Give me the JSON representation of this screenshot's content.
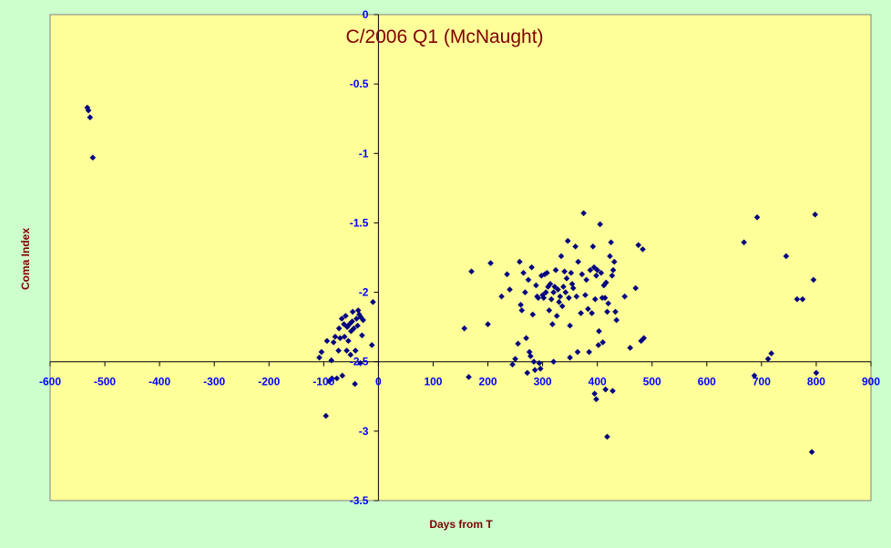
{
  "chart_data": {
    "type": "scatter",
    "title": "C/2006 Q1 (McNaught)",
    "xlabel": "Days from T",
    "ylabel": "Coma Index",
    "xlim": [
      -600,
      900
    ],
    "ylim": [
      -3.5,
      0
    ],
    "x_ticks": [
      -600,
      -500,
      -400,
      -300,
      -200,
      -100,
      0,
      100,
      200,
      300,
      400,
      500,
      600,
      700,
      800,
      900
    ],
    "y_ticks": [
      0,
      -0.5,
      -1,
      -1.5,
      -2,
      -2.5,
      -3,
      -3.5
    ],
    "x_tick_labels": [
      "-600",
      "-500",
      "-400",
      "-300",
      "-200",
      "-100",
      "0",
      "100",
      "200",
      "300",
      "400",
      "500",
      "600",
      "700",
      "800",
      "900"
    ],
    "y_tick_labels": [
      "0",
      "-0.5",
      "-1",
      "-1.5",
      "-2",
      "-2.5",
      "-3",
      "-3.5"
    ],
    "x_axis_crosses_y_at": -2.5,
    "grid": false,
    "legend": "none",
    "plot_background": "#ffff99",
    "page_background": "#ccffcc",
    "marker_color": "#000080",
    "title_color": "#800000",
    "tick_color": "#0000ff",
    "series": [
      {
        "points": [
          [
            -532,
            -0.67
          ],
          [
            -530,
            -0.69
          ],
          [
            -527,
            -0.74
          ],
          [
            -522,
            -1.03
          ],
          [
            -108,
            -2.47
          ],
          [
            -104,
            -2.43
          ],
          [
            -94,
            -2.35
          ],
          [
            -96,
            -2.89
          ],
          [
            -90,
            -2.64
          ],
          [
            -85,
            -2.62
          ],
          [
            -86,
            -2.49
          ],
          [
            -82,
            -2.36
          ],
          [
            -79,
            -2.32
          ],
          [
            -76,
            -2.62
          ],
          [
            -73,
            -2.42
          ],
          [
            -72,
            -2.26
          ],
          [
            -70,
            -2.33
          ],
          [
            -67,
            -2.19
          ],
          [
            -66,
            -2.6
          ],
          [
            -63,
            -2.23
          ],
          [
            -62,
            -2.32
          ],
          [
            -60,
            -2.17
          ],
          [
            -58,
            -2.42
          ],
          [
            -57,
            -2.25
          ],
          [
            -55,
            -2.35
          ],
          [
            -53,
            -2.23
          ],
          [
            -51,
            -2.45
          ],
          [
            -50,
            -2.28
          ],
          [
            -48,
            -2.21
          ],
          [
            -47,
            -2.14
          ],
          [
            -45,
            -2.26
          ],
          [
            -43,
            -2.66
          ],
          [
            -42,
            -2.42
          ],
          [
            -40,
            -2.19
          ],
          [
            -38,
            -2.24
          ],
          [
            -37,
            -2.13
          ],
          [
            -35,
            -2.16
          ],
          [
            -33,
            -2.51
          ],
          [
            -32,
            -2.18
          ],
          [
            -30,
            -2.31
          ],
          [
            -28,
            -2.2
          ],
          [
            -12,
            -2.38
          ],
          [
            -10,
            -2.07
          ],
          [
            157,
            -2.26
          ],
          [
            165,
            -2.61
          ],
          [
            170,
            -1.85
          ],
          [
            200,
            -2.23
          ],
          [
            205,
            -1.79
          ],
          [
            225,
            -2.03
          ],
          [
            235,
            -1.87
          ],
          [
            240,
            -1.98
          ],
          [
            245,
            -2.52
          ],
          [
            250,
            -2.48
          ],
          [
            255,
            -2.37
          ],
          [
            258,
            -1.78
          ],
          [
            260,
            -2.09
          ],
          [
            262,
            -2.13
          ],
          [
            265,
            -1.86
          ],
          [
            268,
            -2.0
          ],
          [
            270,
            -2.33
          ],
          [
            272,
            -2.58
          ],
          [
            274,
            -1.91
          ],
          [
            276,
            -2.43
          ],
          [
            278,
            -2.46
          ],
          [
            280,
            -1.82
          ],
          [
            282,
            -2.16
          ],
          [
            284,
            -2.5
          ],
          [
            286,
            -2.56
          ],
          [
            288,
            -1.95
          ],
          [
            290,
            -2.03
          ],
          [
            292,
            -2.04
          ],
          [
            294,
            -2.51
          ],
          [
            296,
            -2.55
          ],
          [
            298,
            -1.88
          ],
          [
            300,
            -2.02
          ],
          [
            302,
            -2.04
          ],
          [
            304,
            -1.87
          ],
          [
            306,
            -2.0
          ],
          [
            308,
            -1.86
          ],
          [
            310,
            -1.96
          ],
          [
            312,
            -2.13
          ],
          [
            314,
            -1.94
          ],
          [
            316,
            -2.05
          ],
          [
            318,
            -2.23
          ],
          [
            320,
            -2.0
          ],
          [
            322,
            -1.96
          ],
          [
            324,
            -1.84
          ],
          [
            326,
            -2.17
          ],
          [
            328,
            -1.98
          ],
          [
            330,
            -2.07
          ],
          [
            332,
            -2.03
          ],
          [
            334,
            -1.74
          ],
          [
            336,
            -2.1
          ],
          [
            338,
            -1.96
          ],
          [
            340,
            -1.85
          ],
          [
            342,
            -2.0
          ],
          [
            344,
            -1.9
          ],
          [
            346,
            -1.63
          ],
          [
            348,
            -2.04
          ],
          [
            350,
            -2.24
          ],
          [
            352,
            -1.86
          ],
          [
            354,
            -1.94
          ],
          [
            356,
            -1.97
          ],
          [
            360,
            -1.67
          ],
          [
            362,
            -2.03
          ],
          [
            365,
            -1.78
          ],
          [
            370,
            -2.15
          ],
          [
            372,
            -1.87
          ],
          [
            375,
            -1.43
          ],
          [
            378,
            -2.02
          ],
          [
            380,
            -1.91
          ],
          [
            383,
            -2.12
          ],
          [
            385,
            -2.43
          ],
          [
            387,
            -1.84
          ],
          [
            390,
            -2.15
          ],
          [
            392,
            -1.67
          ],
          [
            394,
            -1.82
          ],
          [
            396,
            -2.05
          ],
          [
            398,
            -1.88
          ],
          [
            400,
            -1.84
          ],
          [
            402,
            -2.38
          ],
          [
            403,
            -2.28
          ],
          [
            405,
            -1.51
          ],
          [
            407,
            -1.86
          ],
          [
            409,
            -2.04
          ],
          [
            410,
            -2.36
          ],
          [
            412,
            -1.95
          ],
          [
            414,
            -2.04
          ],
          [
            416,
            -1.93
          ],
          [
            418,
            -2.14
          ],
          [
            420,
            -2.08
          ],
          [
            423,
            -1.74
          ],
          [
            425,
            -1.64
          ],
          [
            427,
            -1.88
          ],
          [
            429,
            -1.84
          ],
          [
            431,
            -1.78
          ],
          [
            433,
            -2.14
          ],
          [
            435,
            -2.2
          ],
          [
            450,
            -2.03
          ],
          [
            460,
            -2.4
          ],
          [
            470,
            -1.97
          ],
          [
            475,
            -1.66
          ],
          [
            480,
            -2.35
          ],
          [
            483,
            -1.69
          ],
          [
            485,
            -2.33
          ],
          [
            395,
            -2.73
          ],
          [
            398,
            -2.77
          ],
          [
            415,
            -2.7
          ],
          [
            418,
            -3.04
          ],
          [
            428,
            -2.71
          ],
          [
            320,
            -2.5
          ],
          [
            350,
            -2.47
          ],
          [
            364,
            -2.43
          ],
          [
            668,
            -1.64
          ],
          [
            687,
            -2.6
          ],
          [
            692,
            -1.46
          ],
          [
            712,
            -2.48
          ],
          [
            718,
            -2.44
          ],
          [
            745,
            -1.74
          ],
          [
            765,
            -2.05
          ],
          [
            775,
            -2.05
          ],
          [
            792,
            -3.15
          ],
          [
            795,
            -1.91
          ],
          [
            798,
            -1.44
          ],
          [
            800,
            -2.58
          ]
        ]
      }
    ]
  }
}
